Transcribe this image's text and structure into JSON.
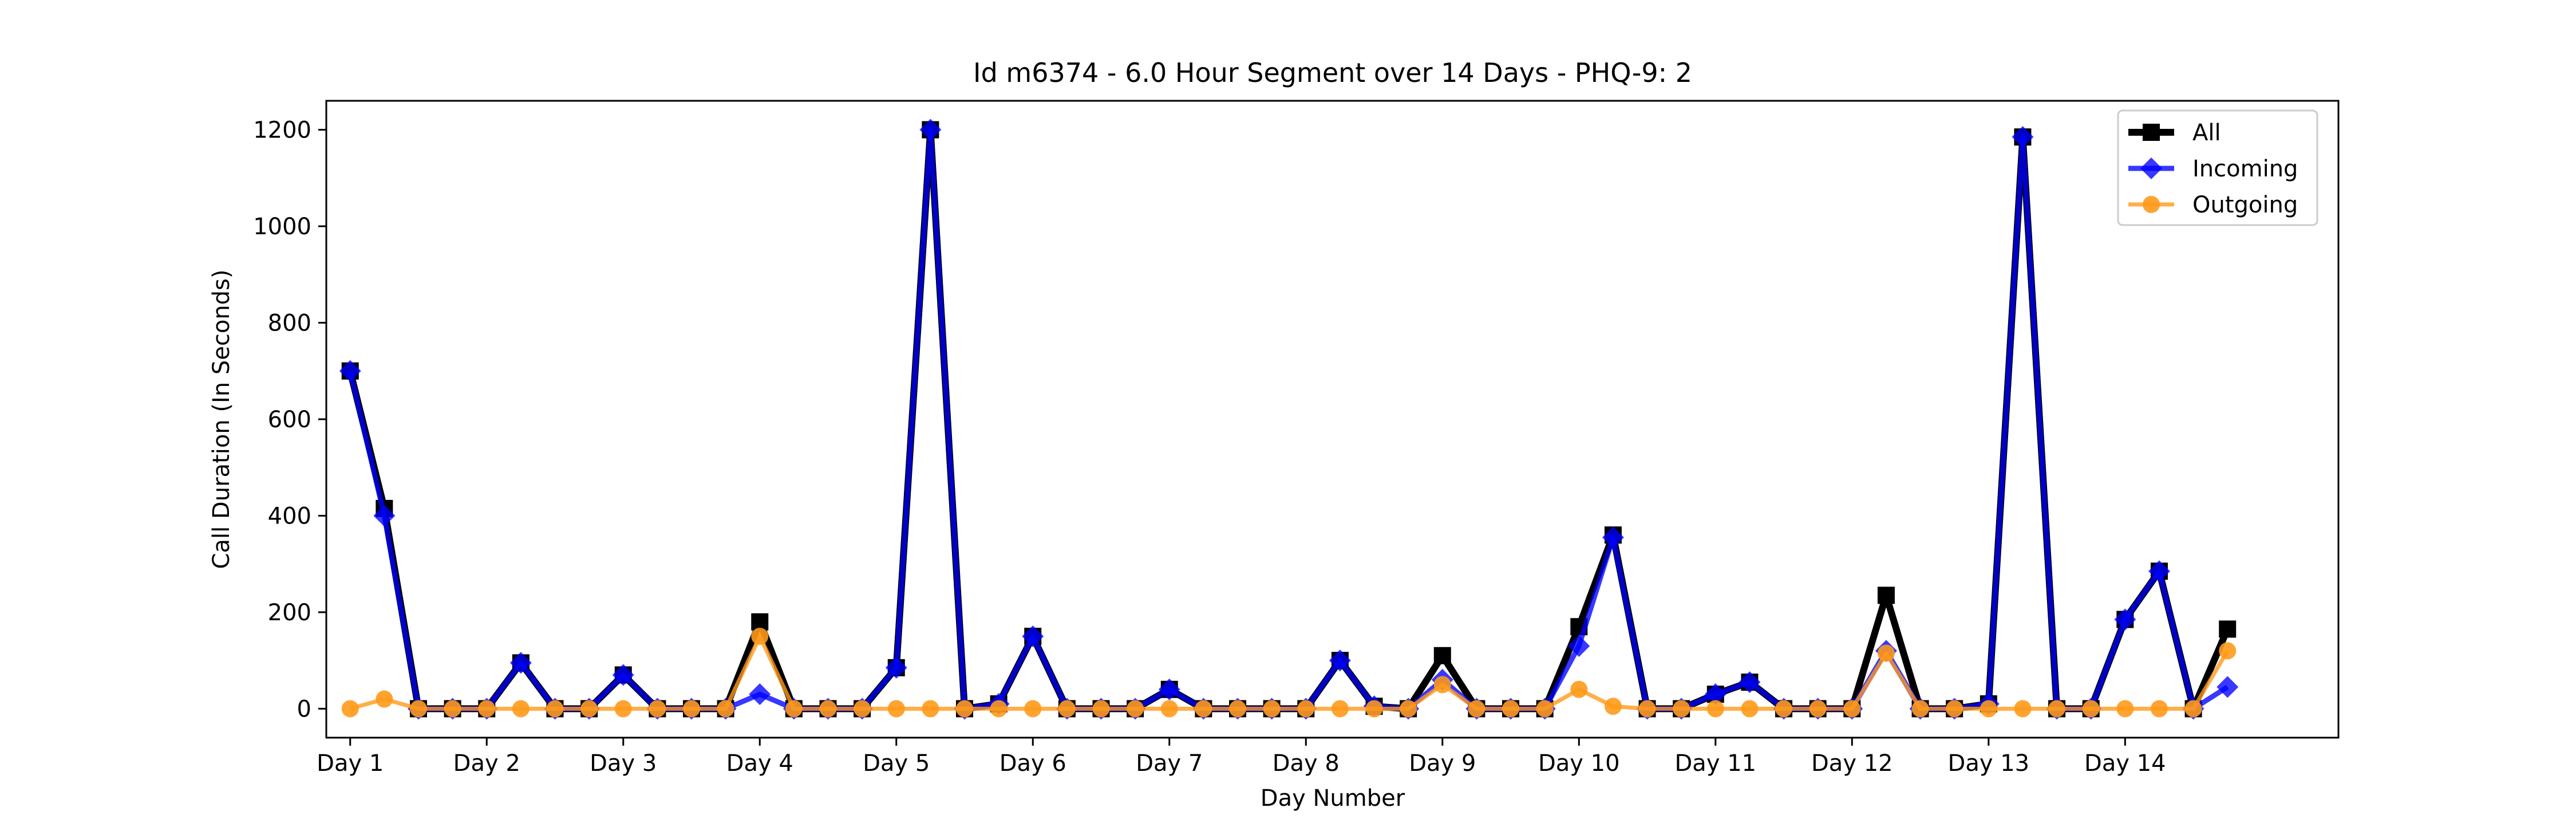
{
  "chart_data": {
    "type": "line",
    "title": "Id m6374 - 6.0 Hour Segment over 14 Days - PHQ-9: 2",
    "xlabel": "Day Number",
    "ylabel": "Call Duration (In Seconds)",
    "xlim": [
      -0.7,
      58.25
    ],
    "ylim": [
      -60,
      1260
    ],
    "x_ticks": [
      {
        "label": "Day 1",
        "x": 0
      },
      {
        "label": "Day 2",
        "x": 4
      },
      {
        "label": "Day 3",
        "x": 8
      },
      {
        "label": "Day 4",
        "x": 12
      },
      {
        "label": "Day 5",
        "x": 16
      },
      {
        "label": "Day 6",
        "x": 20
      },
      {
        "label": "Day 7",
        "x": 24
      },
      {
        "label": "Day 8",
        "x": 28
      },
      {
        "label": "Day 9",
        "x": 32
      },
      {
        "label": "Day 10",
        "x": 36
      },
      {
        "label": "Day 11",
        "x": 40
      },
      {
        "label": "Day 12",
        "x": 44
      },
      {
        "label": "Day 13",
        "x": 48
      },
      {
        "label": "Day 14",
        "x": 52
      }
    ],
    "y_ticks": [
      0,
      200,
      400,
      600,
      800,
      1000,
      1200
    ],
    "legend_position": "top-right",
    "x": [
      0,
      1,
      2,
      3,
      4,
      5,
      6,
      7,
      8,
      9,
      10,
      11,
      12,
      13,
      14,
      15,
      16,
      17,
      18,
      19,
      20,
      21,
      22,
      23,
      24,
      25,
      26,
      27,
      28,
      29,
      30,
      31,
      32,
      33,
      34,
      35,
      36,
      37,
      38,
      39,
      40,
      41,
      42,
      43,
      44,
      45,
      46,
      47,
      48,
      49,
      50,
      51,
      52,
      53,
      54,
      55
    ],
    "series": [
      {
        "name": "All",
        "color": "#000000",
        "marker": "square",
        "values": [
          700,
          415,
          0,
          0,
          0,
          95,
          0,
          0,
          70,
          0,
          0,
          0,
          180,
          0,
          0,
          0,
          85,
          1200,
          0,
          10,
          150,
          0,
          0,
          0,
          40,
          0,
          0,
          0,
          0,
          100,
          5,
          0,
          110,
          0,
          0,
          0,
          170,
          360,
          0,
          0,
          30,
          55,
          0,
          0,
          0,
          235,
          0,
          0,
          10,
          1185,
          0,
          0,
          185,
          285,
          0,
          165
        ]
      },
      {
        "name": "Incoming",
        "color": "#0000ff",
        "marker": "diamond",
        "values": [
          700,
          400,
          0,
          0,
          0,
          95,
          0,
          0,
          70,
          0,
          0,
          0,
          30,
          0,
          0,
          0,
          85,
          1200,
          0,
          10,
          150,
          0,
          0,
          0,
          40,
          0,
          0,
          0,
          0,
          100,
          5,
          0,
          60,
          0,
          0,
          0,
          130,
          355,
          0,
          0,
          30,
          55,
          0,
          0,
          0,
          120,
          0,
          0,
          10,
          1185,
          0,
          0,
          185,
          285,
          0,
          45
        ]
      },
      {
        "name": "Outgoing",
        "color": "#ff9a1a",
        "marker": "circle",
        "values": [
          0,
          20,
          0,
          0,
          0,
          0,
          0,
          0,
          0,
          0,
          0,
          0,
          150,
          0,
          0,
          0,
          0,
          0,
          0,
          0,
          0,
          0,
          0,
          0,
          0,
          0,
          0,
          0,
          0,
          0,
          0,
          0,
          50,
          0,
          0,
          0,
          40,
          5,
          0,
          0,
          0,
          0,
          0,
          0,
          0,
          115,
          0,
          0,
          0,
          0,
          0,
          0,
          0,
          0,
          0,
          120
        ]
      }
    ]
  }
}
